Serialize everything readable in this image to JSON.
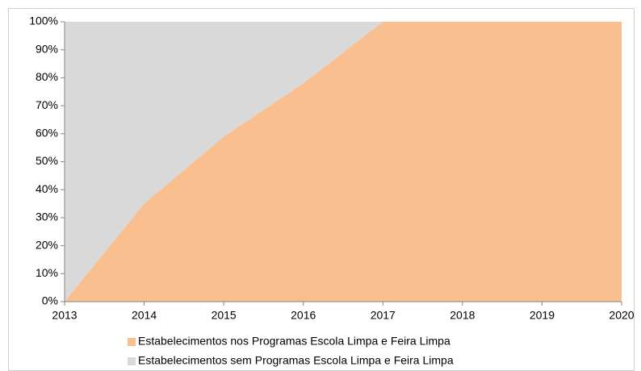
{
  "chart_data": {
    "type": "stacked_area",
    "x": [
      2013,
      2014,
      2015,
      2016,
      2017,
      2018,
      2019,
      2020
    ],
    "xlim": [
      2013,
      2020
    ],
    "xticks": [
      2013,
      2014,
      2015,
      2016,
      2017,
      2018,
      2019,
      2020
    ],
    "ylim": [
      0,
      100
    ],
    "yticks": [
      {
        "value": 0,
        "label": "0%"
      },
      {
        "value": 10,
        "label": "10%"
      },
      {
        "value": 20,
        "label": "20%"
      },
      {
        "value": 30,
        "label": "30%"
      },
      {
        "value": 40,
        "label": "40%"
      },
      {
        "value": 50,
        "label": "50%"
      },
      {
        "value": 60,
        "label": "60%"
      },
      {
        "value": 70,
        "label": "70%"
      },
      {
        "value": 80,
        "label": "80%"
      },
      {
        "value": 90,
        "label": "90%"
      },
      {
        "value": 100,
        "label": "100%"
      }
    ],
    "series": [
      {
        "name": "Estabelecimentos nos Programas Escola Limpa e Feira Limpa",
        "color": "#f9bf8f",
        "values": [
          0,
          35,
          59,
          78,
          100,
          100,
          100,
          100
        ]
      },
      {
        "name": "Estabelecimentos sem Programas Escola Limpa e Feira Limpa",
        "color": "#d9d9d9",
        "values": [
          100,
          65,
          41,
          22,
          0,
          0,
          0,
          0
        ]
      }
    ],
    "legend": "bottom"
  }
}
